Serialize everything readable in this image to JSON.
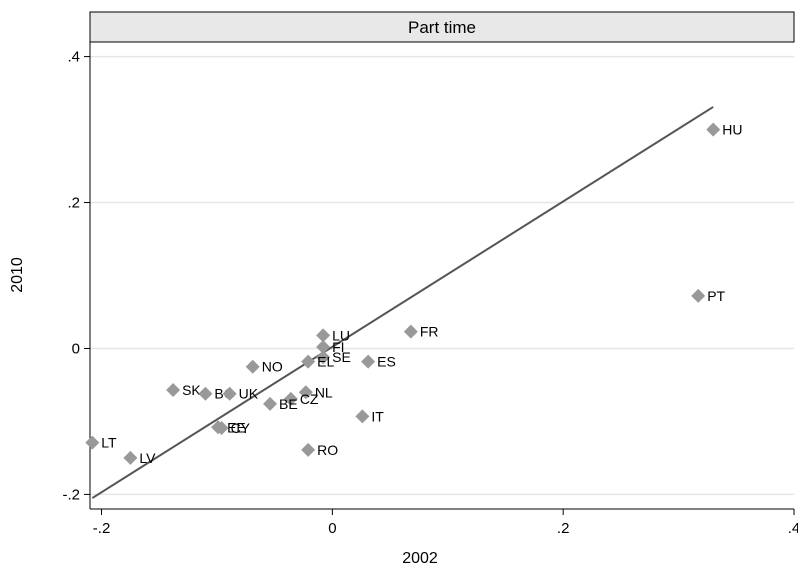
{
  "chart_data": {
    "type": "scatter",
    "title": "Part time",
    "xlabel": "2002",
    "ylabel": "2010",
    "xlim": [
      -0.21,
      0.4
    ],
    "ylim": [
      -0.22,
      0.42
    ],
    "x_ticks": [
      {
        "value": -0.2,
        "label": "-.2"
      },
      {
        "value": 0,
        "label": "0"
      },
      {
        "value": 0.2,
        "label": ".2"
      },
      {
        "value": 0.4,
        "label": ".4"
      }
    ],
    "y_ticks": [
      {
        "value": -0.2,
        "label": "-.2"
      },
      {
        "value": 0,
        "label": "0"
      },
      {
        "value": 0.2,
        "label": ".2"
      },
      {
        "value": 0.4,
        "label": ".4"
      }
    ],
    "grid": true,
    "marker_color": "#999999",
    "line_color": "#555555",
    "points": [
      {
        "label": "HU",
        "x": 0.33,
        "y": 0.3
      },
      {
        "label": "PT",
        "x": 0.317,
        "y": 0.072
      },
      {
        "label": "FR",
        "x": 0.068,
        "y": 0.023
      },
      {
        "label": "LU",
        "x": -0.008,
        "y": 0.018
      },
      {
        "label": "FI",
        "x": -0.008,
        "y": 0.002
      },
      {
        "label": "SE",
        "x": -0.008,
        "y": -0.012
      },
      {
        "label": "EL",
        "x": -0.021,
        "y": -0.018
      },
      {
        "label": "ES",
        "x": 0.031,
        "y": -0.018
      },
      {
        "label": "NO",
        "x": -0.069,
        "y": -0.025
      },
      {
        "label": "SK",
        "x": -0.138,
        "y": -0.057
      },
      {
        "label": "BG",
        "x": -0.11,
        "y": -0.062
      },
      {
        "label": "UK",
        "x": -0.089,
        "y": -0.062
      },
      {
        "label": "NL",
        "x": -0.023,
        "y": -0.06
      },
      {
        "label": "CZ",
        "x": -0.036,
        "y": -0.069
      },
      {
        "label": "BE",
        "x": -0.054,
        "y": -0.076
      },
      {
        "label": "IT",
        "x": 0.026,
        "y": -0.093
      },
      {
        "label": "EE",
        "x": -0.099,
        "y": -0.108
      },
      {
        "label": "CY",
        "x": -0.096,
        "y": -0.109
      },
      {
        "label": "RO",
        "x": -0.021,
        "y": -0.139
      },
      {
        "label": "LT",
        "x": -0.208,
        "y": -0.129
      },
      {
        "label": "LV",
        "x": -0.175,
        "y": -0.15
      }
    ],
    "fit_line": {
      "x": [
        -0.208,
        0.33
      ],
      "y": [
        -0.205,
        0.331
      ]
    }
  }
}
